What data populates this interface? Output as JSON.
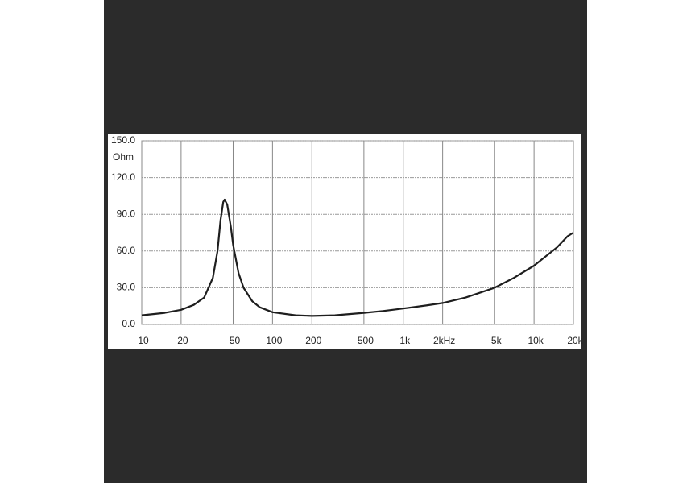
{
  "chart_data": {
    "type": "line",
    "y_label": "Ohm",
    "log_x": true,
    "grid": true,
    "x": [
      10,
      15,
      20,
      25,
      30,
      35,
      38,
      40,
      42,
      43,
      45,
      48,
      50,
      55,
      60,
      70,
      80,
      100,
      150,
      200,
      300,
      500,
      700,
      1000,
      1500,
      2000,
      3000,
      5000,
      7000,
      10000,
      15000,
      18000,
      20000
    ],
    "series": [
      {
        "color": "#1e1e1e",
        "values": [
          7.5,
          9.5,
          12,
          16,
          22,
          38,
          60,
          85,
          100,
          102,
          98,
          80,
          65,
          42,
          30,
          19,
          14,
          10,
          7.5,
          7,
          7.5,
          9.5,
          11,
          13,
          15.5,
          17.5,
          22,
          30,
          38,
          48,
          63,
          72,
          75
        ]
      }
    ],
    "xlim": [
      10,
      20000
    ],
    "xticks": [
      10,
      20,
      50,
      100,
      200,
      500,
      {
        "value": 1000,
        "label": "1k"
      },
      {
        "value": 2000,
        "label": "2kHz"
      },
      {
        "value": 5000,
        "label": "5k"
      },
      {
        "value": 10000,
        "label": "10k"
      },
      {
        "value": 20000,
        "label": "20k"
      }
    ],
    "ylim": [
      0,
      150
    ],
    "yticks": [
      {
        "value": 0,
        "label": "0.0"
      },
      {
        "value": 30,
        "label": "30.0"
      },
      {
        "value": 60,
        "label": "60.0"
      },
      {
        "value": 90,
        "label": "90.0"
      },
      {
        "value": 120,
        "label": "120.0"
      },
      {
        "value": 150,
        "label": "150.0"
      }
    ]
  }
}
